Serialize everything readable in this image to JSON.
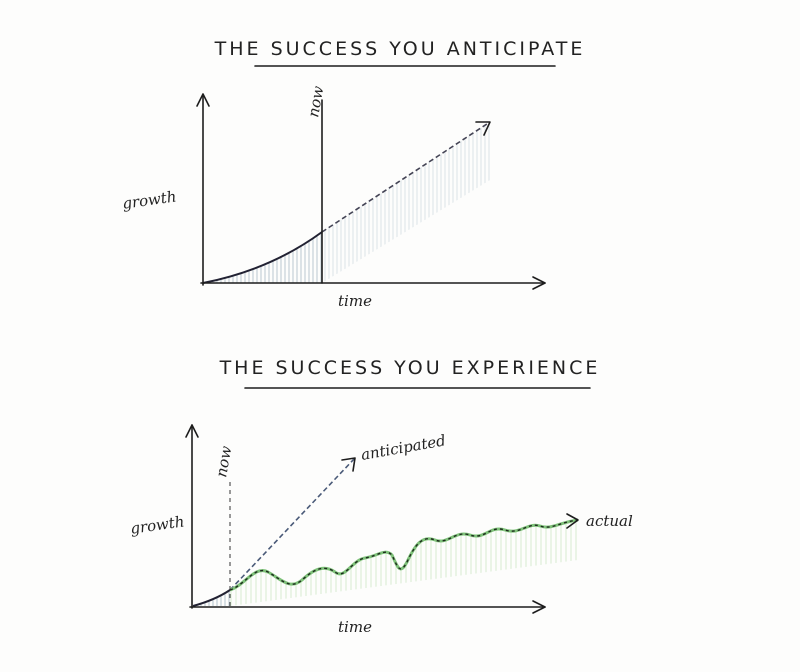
{
  "panels": [
    {
      "title": "THE SUCCESS YOU ANTICIPATE",
      "now_label": "now",
      "y_label": "growth",
      "x_label": "time"
    },
    {
      "title": "THE SUCCESS YOU EXPERIENCE",
      "now_label": "now",
      "y_label": "growth",
      "x_label": "time",
      "line_labels": [
        "anticipated",
        "actual"
      ]
    }
  ]
}
